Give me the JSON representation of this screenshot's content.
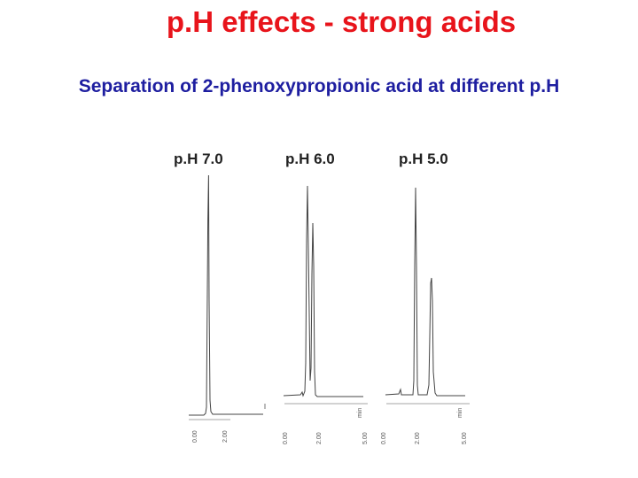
{
  "title": "p.H effects - strong acids",
  "subtitle": "Separation of 2-phenoxypropionic acid at different p.H",
  "panels": [
    {
      "label": "p.H 7.0",
      "ticks": [
        "0.00",
        "2.00"
      ]
    },
    {
      "label": "p.H 6.0",
      "ticks": [
        "0.00",
        "2.00",
        "5.00"
      ],
      "unit": "min"
    },
    {
      "label": "p.H 5.0",
      "ticks": [
        "0.00",
        "2.00",
        "5.00"
      ],
      "unit": "min"
    }
  ],
  "colors": {
    "title": "#e8141b",
    "subtitle": "#1e1ea0",
    "trace": "#444444"
  }
}
